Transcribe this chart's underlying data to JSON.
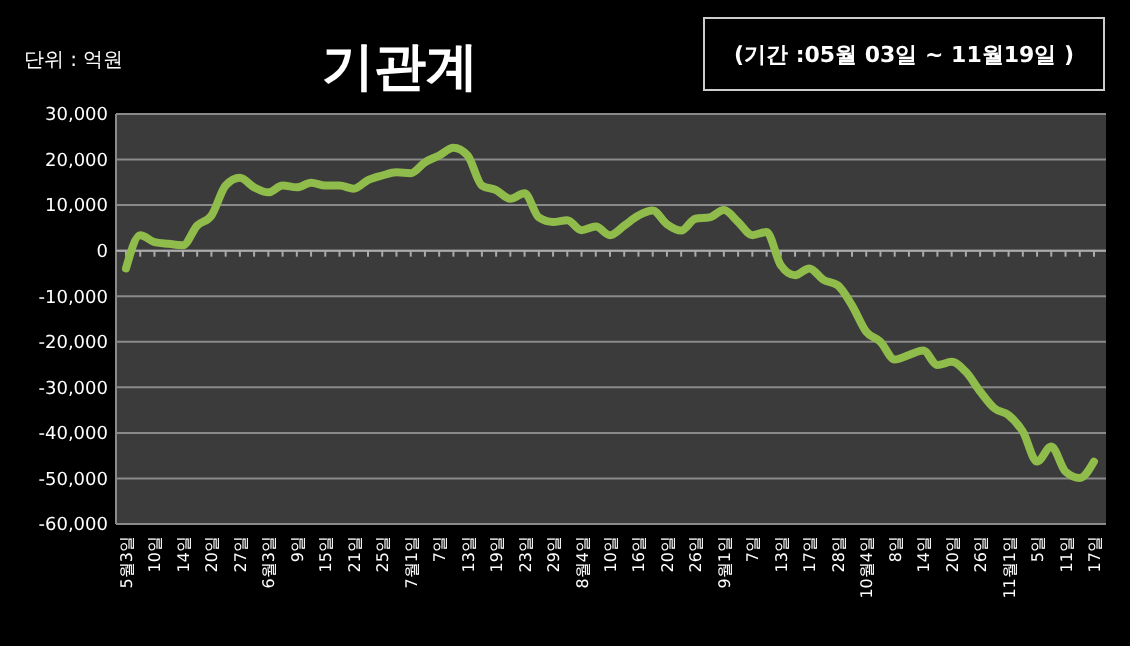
{
  "chart_data": {
    "type": "line",
    "title": "기관계",
    "annotations": [
      "단위 : 억원",
      "(기간 :05월 03일 ~ 11월19일 )"
    ],
    "categories": [
      "5월3일",
      null,
      "10일",
      null,
      "14일",
      null,
      "20일",
      null,
      "27일",
      null,
      "6월3일",
      null,
      "9일",
      null,
      "15일",
      null,
      "21일",
      null,
      "25일",
      null,
      "7월1일",
      null,
      "7일",
      null,
      "13일",
      null,
      "19일",
      null,
      "23일",
      null,
      "29일",
      null,
      "8월4일",
      null,
      "10일",
      null,
      "16일",
      null,
      "20일",
      null,
      "26일",
      null,
      "9월1일",
      null,
      "7일",
      null,
      "13일",
      null,
      "17일",
      null,
      "28일",
      null,
      "10월4일",
      null,
      "8일",
      null,
      "14일",
      null,
      "20일",
      null,
      "26일",
      null,
      "11월1일",
      null,
      "5일",
      null,
      "11일",
      null,
      "17일"
    ],
    "series": [
      {
        "color": "#8fbc4a",
        "values": [
          -3900,
          3400,
          1900,
          1500,
          1200,
          5500,
          7700,
          14300,
          16000,
          13900,
          12800,
          14300,
          13900,
          14900,
          14300,
          14300,
          13600,
          15500,
          16500,
          17200,
          17000,
          19400,
          20900,
          22600,
          20900,
          14300,
          13300,
          11400,
          12600,
          7300,
          6300,
          6700,
          4500,
          5300,
          3400,
          5500,
          7700,
          8800,
          5800,
          4400,
          7000,
          7300,
          8900,
          6300,
          3400,
          4100,
          -3200,
          -5400,
          -3900,
          -6400,
          -7600,
          -12000,
          -17800,
          -20000,
          -23900,
          -22900,
          -21900,
          -25100,
          -24400,
          -26600,
          -30900,
          -34600,
          -36100,
          -39700,
          -46300,
          -43000,
          -48500,
          -49900,
          -46300
        ]
      }
    ],
    "ylim": [
      -60000,
      30000
    ],
    "yticks": [
      {
        "value": -60000,
        "label": "-60,000"
      },
      {
        "value": -50000,
        "label": "-50,000"
      },
      {
        "value": -40000,
        "label": "-40,000"
      },
      {
        "value": -30000,
        "label": "-30,000"
      },
      {
        "value": -20000,
        "label": "-20,000"
      },
      {
        "value": -10000,
        "label": "-10,000"
      },
      0,
      {
        "value": 10000,
        "label": "10,000"
      },
      {
        "value": 20000,
        "label": "20,000"
      },
      {
        "value": 30000,
        "label": "30,000"
      }
    ],
    "grid": "y",
    "marker": "none",
    "line_style": "solid"
  }
}
